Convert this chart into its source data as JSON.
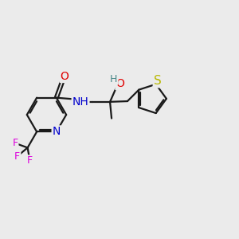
{
  "bg_color": "#ebebeb",
  "bond_color": "#1a1a1a",
  "bond_width": 1.6,
  "dbo": 0.055,
  "atom_colors": {
    "O": "#e00000",
    "N": "#0000cc",
    "S": "#b8b800",
    "F": "#dd00dd",
    "H_label": "#4a8888",
    "C": "#1a1a1a"
  },
  "font_size": 9.5,
  "fig_size": [
    3.0,
    3.0
  ],
  "dpi": 100
}
